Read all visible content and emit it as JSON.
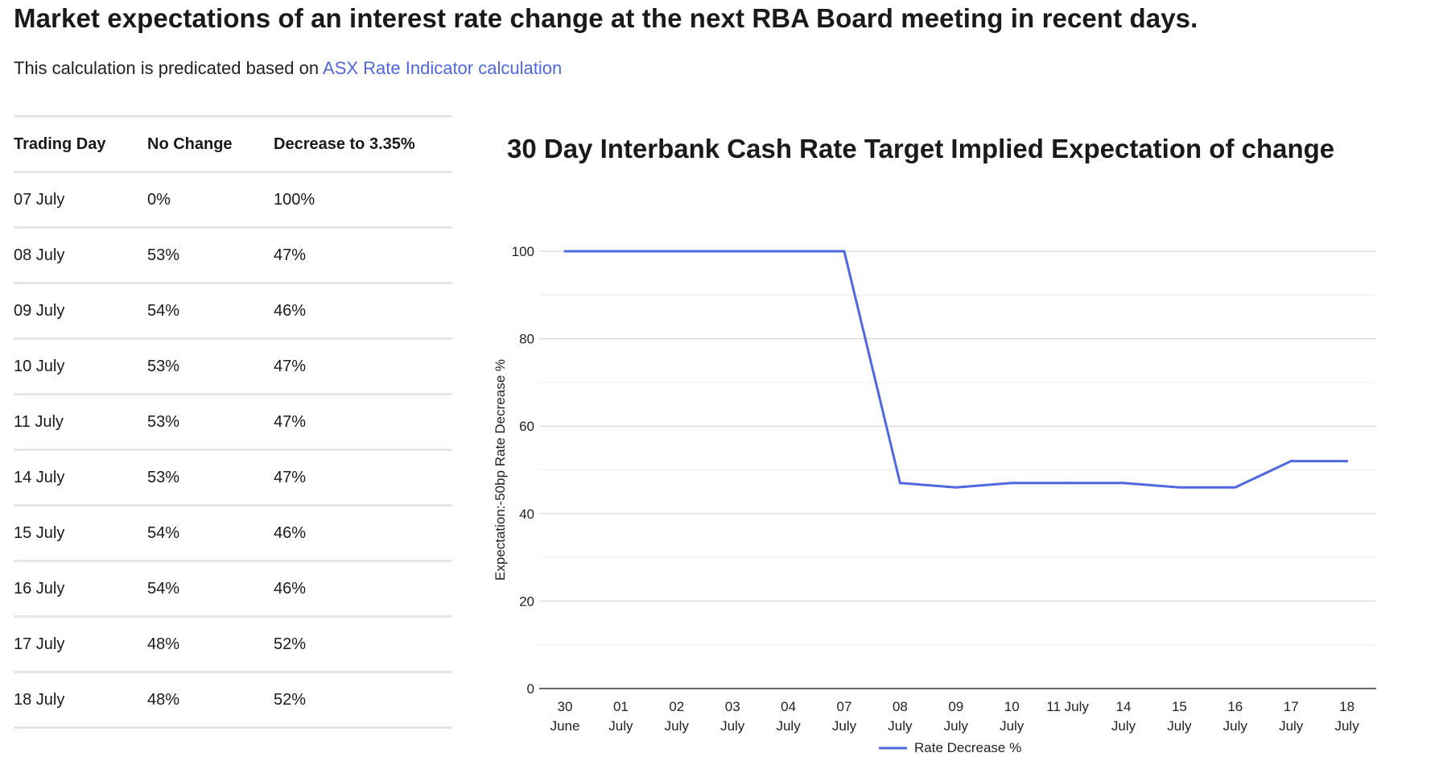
{
  "header": {
    "title": "Market expectations of an interest rate change at the next RBA Board meeting in recent days.",
    "subtitle_prefix": "This calculation is predicated based on ",
    "subtitle_link": "ASX Rate Indicator calculation"
  },
  "table": {
    "columns": [
      "Trading Day",
      "No Change",
      "Decrease to 3.35%"
    ],
    "rows": [
      [
        "07 July",
        "0%",
        "100%"
      ],
      [
        "08 July",
        "53%",
        "47%"
      ],
      [
        "09 July",
        "54%",
        "46%"
      ],
      [
        "10 July",
        "53%",
        "47%"
      ],
      [
        "11 July",
        "53%",
        "47%"
      ],
      [
        "14 July",
        "53%",
        "47%"
      ],
      [
        "15 July",
        "54%",
        "46%"
      ],
      [
        "16 July",
        "54%",
        "46%"
      ],
      [
        "17 July",
        "48%",
        "52%"
      ],
      [
        "18 July",
        "48%",
        "52%"
      ]
    ]
  },
  "colors": {
    "line": "#4f67df",
    "link": "#4f67df",
    "grid": "#d9d9d9",
    "axis": "#333333"
  },
  "chart_data": {
    "type": "line",
    "title": "30 Day Interbank Cash Rate Target Implied Expectation of change",
    "xlabel": "",
    "ylabel": "Expectation:-50bp Rate Decrease %",
    "ylim": [
      0,
      100
    ],
    "yticks": [
      0,
      20,
      40,
      60,
      80,
      100
    ],
    "grid": true,
    "legend_position": "bottom-center",
    "categories": [
      [
        "30",
        "June"
      ],
      [
        "01",
        "July"
      ],
      [
        "02",
        "July"
      ],
      [
        "03",
        "July"
      ],
      [
        "04",
        "July"
      ],
      [
        "07",
        "July"
      ],
      [
        "08",
        "July"
      ],
      [
        "09",
        "July"
      ],
      [
        "10",
        "July"
      ],
      [
        "11 July"
      ],
      [
        "14",
        "July"
      ],
      [
        "15",
        "July"
      ],
      [
        "16",
        "July"
      ],
      [
        "17",
        "July"
      ],
      [
        "18",
        "July"
      ]
    ],
    "series": [
      {
        "name": "Rate Decrease %",
        "values": [
          100,
          100,
          100,
          100,
          100,
          100,
          47,
          46,
          47,
          47,
          47,
          46,
          46,
          52,
          52
        ]
      }
    ]
  }
}
